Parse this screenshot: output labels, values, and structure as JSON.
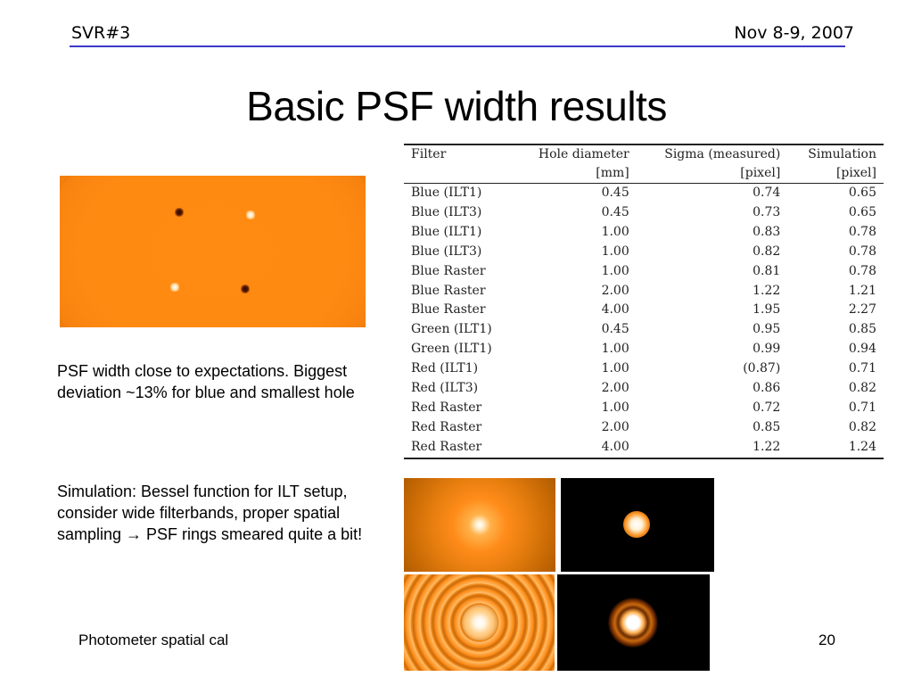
{
  "header": {
    "left": "SVR#3",
    "right": "Nov 8-9, 2007"
  },
  "title": "Basic PSF width results",
  "table": {
    "headers": [
      {
        "name": "Filter",
        "unit": ""
      },
      {
        "name": "Hole diameter",
        "unit": "[mm]"
      },
      {
        "name": "Sigma (measured)",
        "unit": "[pixel]"
      },
      {
        "name": "Simulation",
        "unit": "[pixel]"
      }
    ],
    "rows": [
      {
        "filter": "Blue (ILT1)",
        "hole": "0.45",
        "sigma": "0.74",
        "sim": "0.65"
      },
      {
        "filter": "Blue (ILT3)",
        "hole": "0.45",
        "sigma": "0.73",
        "sim": "0.65"
      },
      {
        "filter": "Blue (ILT1)",
        "hole": "1.00",
        "sigma": "0.83",
        "sim": "0.78"
      },
      {
        "filter": "Blue (ILT3)",
        "hole": "1.00",
        "sigma": "0.82",
        "sim": "0.78"
      },
      {
        "filter": "Blue Raster",
        "hole": "1.00",
        "sigma": "0.81",
        "sim": "0.78"
      },
      {
        "filter": "Blue Raster",
        "hole": "2.00",
        "sigma": "1.22",
        "sim": "1.21"
      },
      {
        "filter": "Blue Raster",
        "hole": "4.00",
        "sigma": "1.95",
        "sim": "2.27"
      },
      {
        "filter": "Green (ILT1)",
        "hole": "0.45",
        "sigma": "0.95",
        "sim": "0.85"
      },
      {
        "filter": "Green (ILT1)",
        "hole": "1.00",
        "sigma": "0.99",
        "sim": "0.94"
      },
      {
        "filter": "Red (ILT1)",
        "hole": "1.00",
        "sigma": "(0.87)",
        "sim": "0.71"
      },
      {
        "filter": "Red (ILT3)",
        "hole": "2.00",
        "sigma": "0.86",
        "sim": "0.82"
      },
      {
        "filter": "Red Raster",
        "hole": "1.00",
        "sigma": "0.72",
        "sim": "0.71"
      },
      {
        "filter": "Red Raster",
        "hole": "2.00",
        "sigma": "0.85",
        "sim": "0.82"
      },
      {
        "filter": "Red Raster",
        "hole": "4.00",
        "sigma": "1.22",
        "sim": "1.24"
      }
    ]
  },
  "paragraphs": {
    "p1": "PSF width close to expectations. Biggest deviation ~13% for blue and smallest hole",
    "p2": "Simulation: Bessel function for ILT setup, consider wide filterbands, proper spatial sampling → PSF rings smeared quite a bit!"
  },
  "footer": {
    "left": "Photometer spatial cal",
    "page": "20"
  },
  "colors": {
    "accent_rule": "#3a3ac8",
    "detector_orange": "#ff8b13"
  }
}
